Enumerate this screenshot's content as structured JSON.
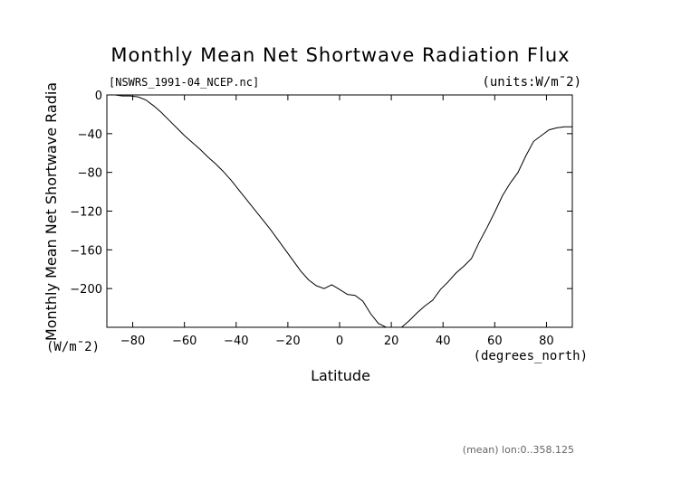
{
  "chart_data": {
    "type": "line",
    "title": "Monthly Mean Net Shortwave Radiation Flux",
    "file_label": "[NSWRS_1991-04_NCEP.nc]",
    "units_label": "(units:W/m¯2)",
    "xlabel": "Latitude",
    "xunits": "(degrees_north)",
    "ylabel": "Monthly Mean Net Shortwave Radia",
    "yunits": "(W/m¯2)",
    "footnote": "(mean) lon:0..358.125",
    "xlim": [
      -90,
      90
    ],
    "ylim": [
      -240,
      0
    ],
    "xticks": [
      -80,
      -60,
      -40,
      -20,
      0,
      20,
      40,
      60,
      80
    ],
    "yticks": [
      0,
      -40,
      -80,
      -120,
      -160,
      -200
    ],
    "grid": false,
    "series": [
      {
        "x": [
          -90,
          -87,
          -84,
          -81,
          -78,
          -75,
          -72,
          -69,
          -66,
          -63,
          -60,
          -57,
          -54,
          -51,
          -48,
          -45,
          -42,
          -39,
          -36,
          -33,
          -30,
          -27,
          -24,
          -21,
          -18,
          -15,
          -12,
          -9,
          -6,
          -3,
          0,
          3,
          6,
          9,
          12,
          15,
          18,
          21,
          24,
          27,
          30,
          33,
          36,
          39,
          42,
          45,
          48,
          51,
          54,
          57,
          60,
          63,
          66,
          69,
          72,
          75,
          78,
          81,
          84,
          87,
          90
        ],
        "y": [
          0,
          0,
          -1,
          -1,
          -2,
          -5,
          -11,
          -18,
          -26,
          -34,
          -42,
          -49,
          -56,
          -64,
          -71,
          -79,
          -88,
          -98,
          -108,
          -118,
          -128,
          -138,
          -149,
          -160,
          -171,
          -182,
          -191,
          -197,
          -200,
          -196,
          -201,
          -206,
          -207,
          -213,
          -226,
          -236,
          -240,
          -240,
          -240,
          -233,
          -225,
          -218,
          -212,
          -201,
          -193,
          -184,
          -177,
          -169,
          -152,
          -137,
          -121,
          -104,
          -91,
          -80,
          -63,
          -48,
          -42,
          -36,
          -34,
          -33,
          -33
        ]
      }
    ]
  }
}
